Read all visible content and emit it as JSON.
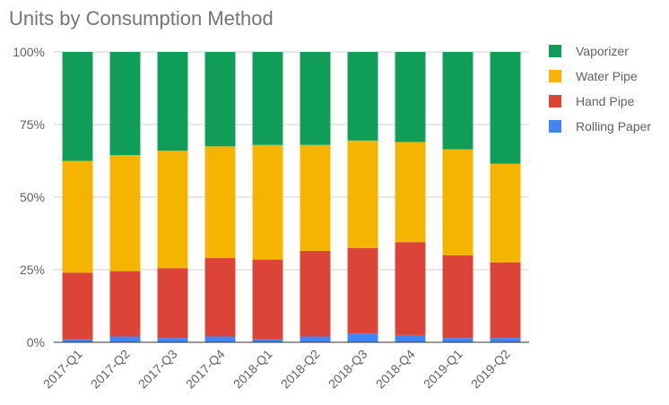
{
  "chart_data": {
    "type": "bar",
    "stacked": true,
    "normalized": true,
    "title": "Units by Consumption Method",
    "categories": [
      "2017-Q1",
      "2017-Q2",
      "2017-Q3",
      "2017-Q4",
      "2018-Q1",
      "2018-Q2",
      "2018-Q3",
      "2018-Q4",
      "2019-Q1",
      "2019-Q2"
    ],
    "series": [
      {
        "name": "Rolling Paper",
        "color": "#4285f4",
        "values": [
          1,
          2,
          1.5,
          2,
          1,
          2,
          3,
          2.5,
          1.5,
          1.5
        ]
      },
      {
        "name": "Hand Pipe",
        "color": "#db4437",
        "values": [
          23,
          22.5,
          24,
          27,
          27.5,
          29.5,
          29.5,
          32,
          28.5,
          26
        ]
      },
      {
        "name": "Water Pipe",
        "color": "#f4b400",
        "values": [
          38.5,
          40,
          40.5,
          38.5,
          39.5,
          36.5,
          37,
          34.5,
          36.5,
          34
        ]
      },
      {
        "name": "Vaporizer",
        "color": "#0f9d58",
        "values": [
          37.5,
          35.5,
          34,
          32.5,
          32,
          32,
          30.5,
          31,
          33.5,
          38.5
        ]
      }
    ],
    "y_ticks": [
      "0%",
      "25%",
      "50%",
      "75%",
      "100%"
    ],
    "ylim": [
      0,
      100
    ],
    "grid": true,
    "legend_position": "right"
  }
}
